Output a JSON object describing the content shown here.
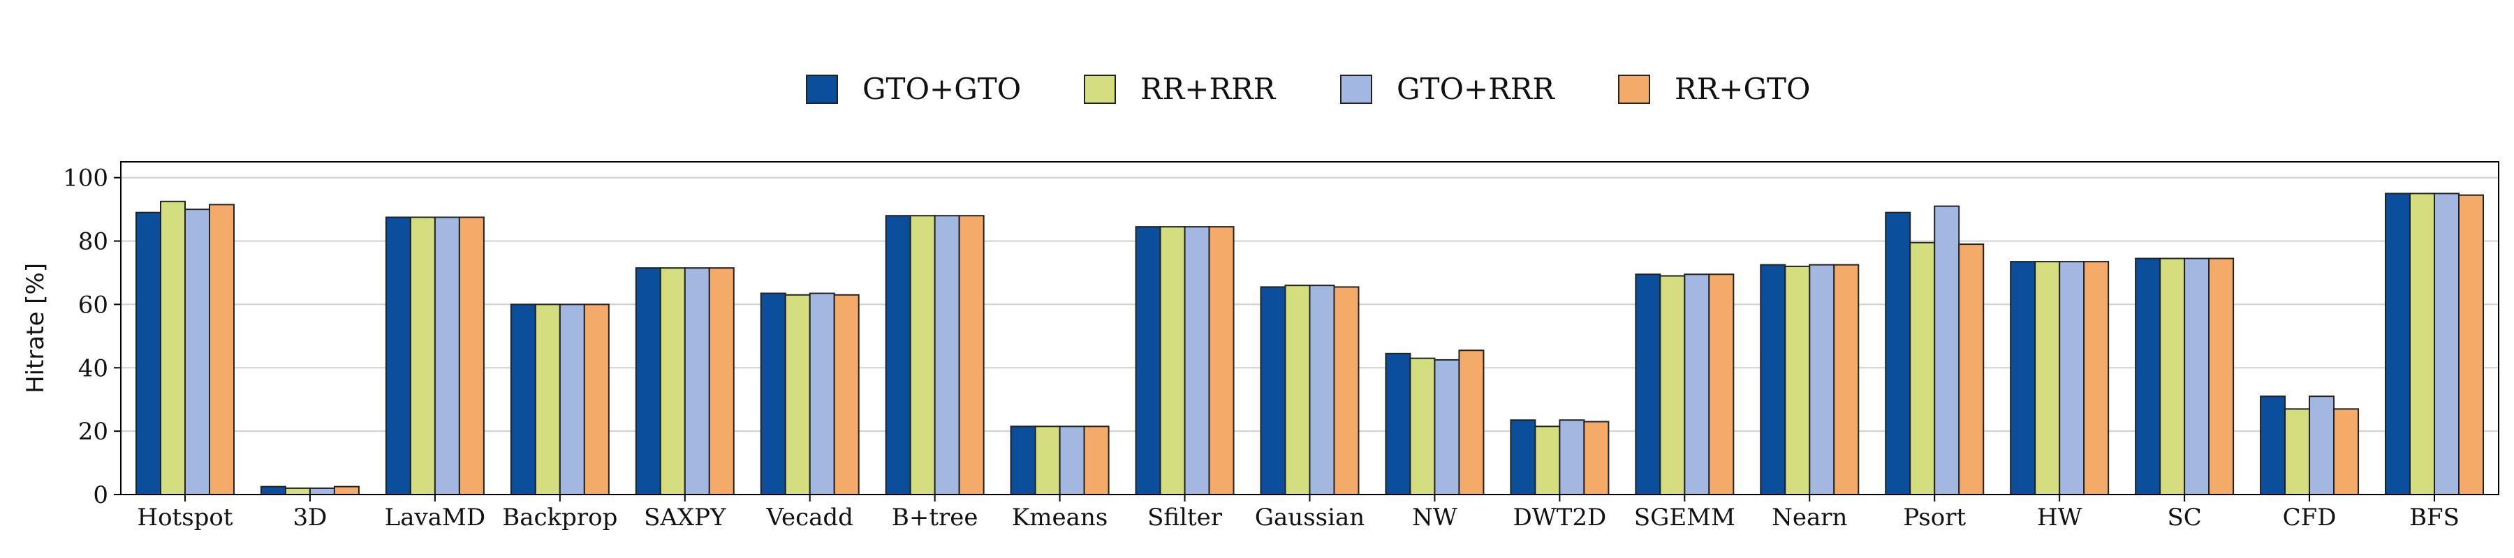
{
  "chart_data": {
    "type": "bar",
    "title": "",
    "xlabel": "",
    "ylabel": "Hitrate [%]",
    "ylim": [
      0,
      105
    ],
    "yticks": [
      0,
      20,
      40,
      60,
      80,
      100
    ],
    "grid": "horizontal",
    "legend_position": "top-center",
    "categories": [
      "Hotspot",
      "3D",
      "LavaMD",
      "Backprop",
      "SAXPY",
      "Vecadd",
      "B+tree",
      "Kmeans",
      "Sfilter",
      "Gaussian",
      "NW",
      "DWT2D",
      "SGEMM",
      "Nearn",
      "Psort",
      "HW",
      "SC",
      "CFD",
      "BFS"
    ],
    "series": [
      {
        "name": "GTO+GTO",
        "color": "#0b4f9c",
        "values": [
          89,
          2.5,
          87.5,
          60,
          71.5,
          63.5,
          88,
          21.5,
          84.5,
          65.5,
          44.5,
          23.5,
          69.5,
          72.5,
          89,
          73.5,
          74.5,
          31,
          95
        ]
      },
      {
        "name": "RR+RRR",
        "color": "#d4de7e",
        "values": [
          92.5,
          2,
          87.5,
          60,
          71.5,
          63,
          88,
          21.5,
          84.5,
          66,
          43,
          21.5,
          69,
          72,
          79.5,
          73.5,
          74.5,
          27,
          95
        ]
      },
      {
        "name": "GTO+RRR",
        "color": "#a3b8e0",
        "values": [
          90,
          2,
          87.5,
          60,
          71.5,
          63.5,
          88,
          21.5,
          84.5,
          66,
          42.5,
          23.5,
          69.5,
          72.5,
          91,
          73.5,
          74.5,
          31,
          95
        ]
      },
      {
        "name": "RR+GTO",
        "color": "#f4aa68",
        "values": [
          91.5,
          2.5,
          87.5,
          60,
          71.5,
          63,
          88,
          21.5,
          84.5,
          65.5,
          45.5,
          23,
          69.5,
          72.5,
          79,
          73.5,
          74.5,
          27,
          94.5
        ]
      }
    ]
  }
}
